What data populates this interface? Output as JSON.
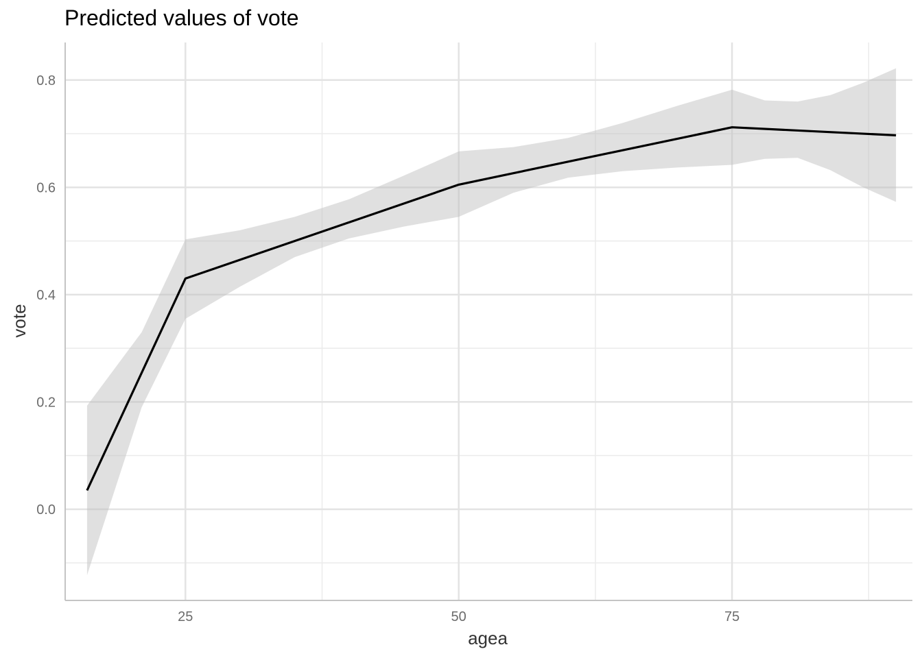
{
  "chart_data": {
    "type": "line",
    "title": "Predicted values of vote",
    "xlabel": "agea",
    "ylabel": "vote",
    "xlim": [
      14,
      91.5
    ],
    "ylim": [
      -0.17,
      0.87
    ],
    "x_ticks": [
      25,
      50,
      75
    ],
    "y_ticks": [
      0.0,
      0.2,
      0.4,
      0.6,
      0.8
    ],
    "x_tick_labels": [
      "25",
      "50",
      "75"
    ],
    "y_tick_labels": [
      "0.0",
      "0.2",
      "0.4",
      "0.6",
      "0.8"
    ],
    "x_minor_grid": [
      37.5,
      62.5,
      87.5
    ],
    "y_minor_grid": [
      -0.1,
      0.1,
      0.3,
      0.5,
      0.7
    ],
    "grid": true,
    "legend": "none",
    "series": [
      {
        "x": [
          16,
          25,
          50,
          75,
          90
        ],
        "values": [
          0.035,
          0.43,
          0.605,
          0.712,
          0.697
        ],
        "color": "#000000"
      }
    ],
    "confidence_band": {
      "color": "#bebebe",
      "x": [
        16,
        21,
        25,
        30,
        35,
        40,
        45,
        50,
        55,
        60,
        65,
        70,
        75,
        78,
        81,
        84,
        87,
        90
      ],
      "lower": [
        -0.123,
        0.19,
        0.355,
        0.415,
        0.47,
        0.505,
        0.527,
        0.545,
        0.59,
        0.618,
        0.63,
        0.637,
        0.642,
        0.653,
        0.655,
        0.632,
        0.6,
        0.573
      ],
      "upper": [
        0.193,
        0.33,
        0.503,
        0.52,
        0.545,
        0.578,
        0.622,
        0.667,
        0.675,
        0.692,
        0.72,
        0.752,
        0.782,
        0.762,
        0.76,
        0.772,
        0.795,
        0.822
      ]
    }
  }
}
